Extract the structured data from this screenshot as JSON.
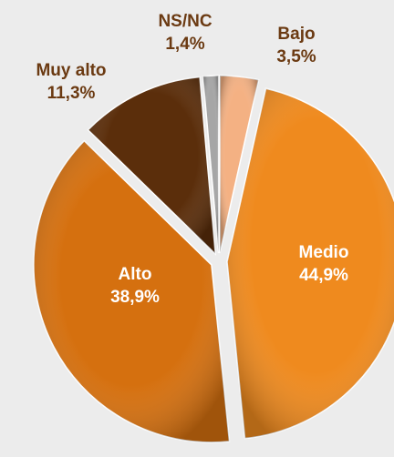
{
  "chart_data": {
    "type": "pie",
    "categories": [
      "Bajo",
      "Medio",
      "Alto",
      "Muy alto",
      "NS/NC"
    ],
    "values": [
      3.5,
      44.9,
      38.9,
      11.3,
      1.4
    ],
    "value_labels": [
      "3,5%",
      "44,9%",
      "38,9%",
      "11,3%",
      "1,4%"
    ],
    "colors": [
      "#f4b183",
      "#ef8a1e",
      "#d5700f",
      "#5b2e0b",
      "#a6a6a6"
    ]
  }
}
